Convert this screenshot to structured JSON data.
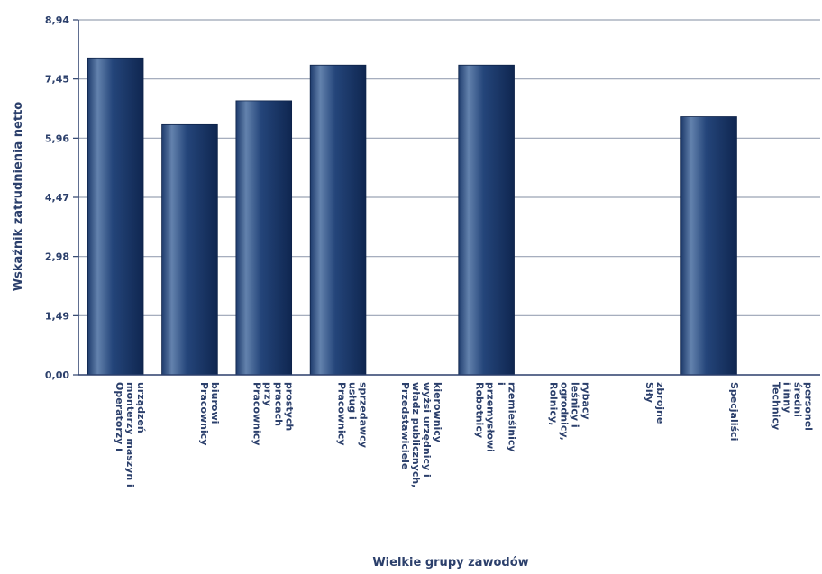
{
  "chart_data": {
    "type": "bar",
    "title": "",
    "xlabel": "Wielkie grupy zawodów",
    "ylabel": "Wskaźnik zatrudnienia netto",
    "ylim": [
      0,
      8.94
    ],
    "yticks": [
      "0,00",
      "1,49",
      "2,98",
      "4,47",
      "5,96",
      "7,45",
      "8,94"
    ],
    "ytick_values": [
      0,
      1.49,
      2.98,
      4.47,
      5.96,
      7.45,
      8.94
    ],
    "grid": true,
    "categories": [
      {
        "lines": [
          "Operatorzy i",
          "monterzy maszyn i",
          "urządzeń"
        ],
        "value": 7.98
      },
      {
        "lines": [
          "Pracownicy",
          "biurowi"
        ],
        "value": 6.3
      },
      {
        "lines": [
          "Pracownicy",
          "przy",
          "pracach",
          "prostych"
        ],
        "value": 6.9
      },
      {
        "lines": [
          "Pracownicy",
          "usług i",
          "sprzedawcy"
        ],
        "value": 7.8
      },
      {
        "lines": [
          "Przedstawiciele",
          "władz publicznych,",
          "wyżsi urzędnicy i",
          "kierownicy"
        ],
        "value": 0
      },
      {
        "lines": [
          "Robotnicy",
          "przemysłowi",
          "i",
          "rzemieślnicy"
        ],
        "value": 7.8
      },
      {
        "lines": [
          "Rolnicy,",
          "ogrodnicy,",
          "leśnicy i",
          "rybacy"
        ],
        "value": 0
      },
      {
        "lines": [
          "Siły",
          "zbrojne"
        ],
        "value": 0
      },
      {
        "lines": [
          "Specjaliści"
        ],
        "value": 6.5
      },
      {
        "lines": [
          "Technicy",
          "i inny",
          "średni",
          "personel"
        ],
        "value": 0
      }
    ],
    "colors": {
      "bar_dark": "#15305e",
      "bar_light": "#5b7aa6",
      "grid": "#9aa3b5",
      "axis": "#2b3f6b"
    }
  }
}
